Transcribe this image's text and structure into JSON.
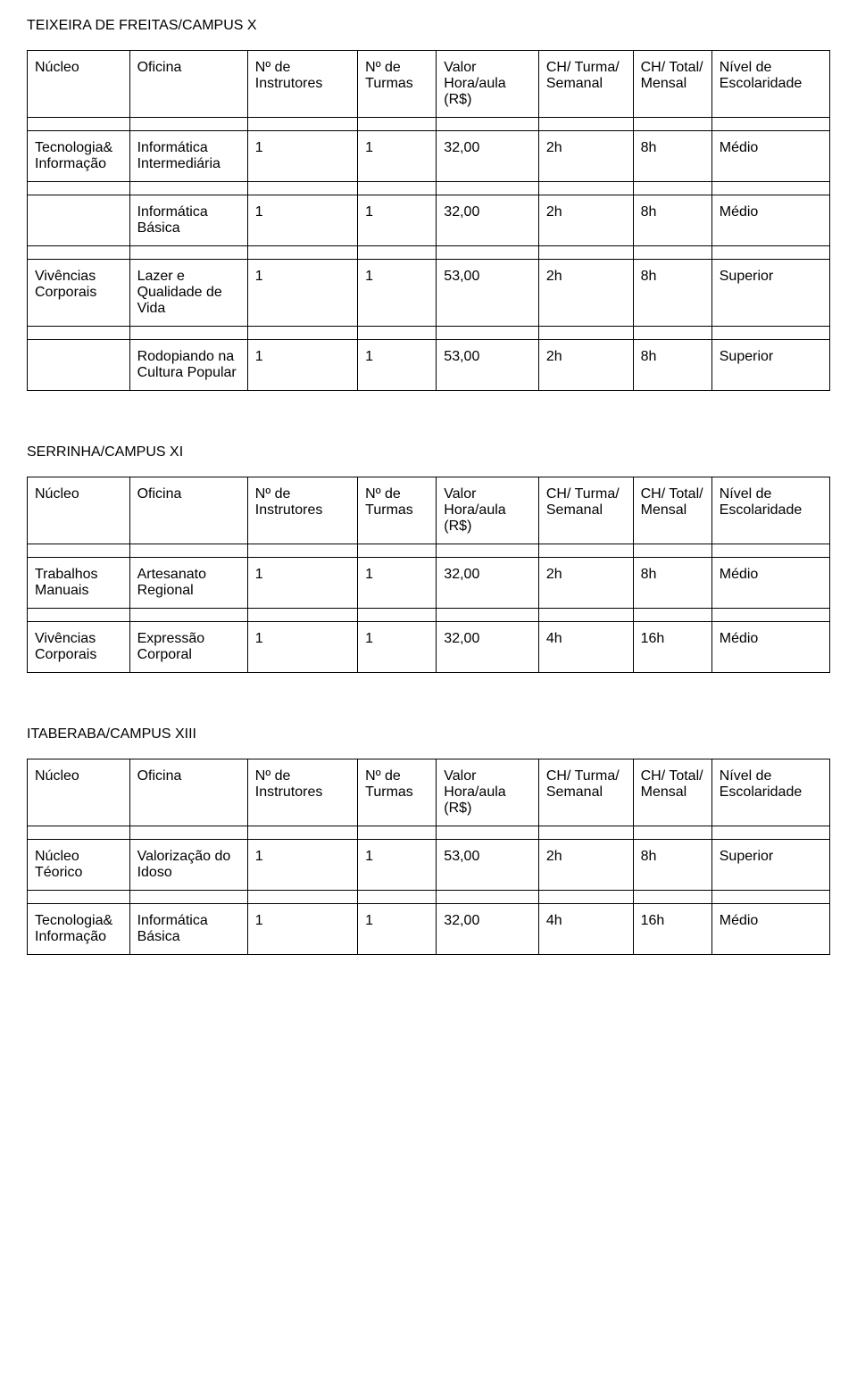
{
  "columns": [
    "Núcleo",
    "Oficina",
    "Nº de Instrutores",
    "Nº de Turmas",
    "Valor Hora/aula (R$)",
    "CH/ Turma/ Semanal",
    "CH/ Total/ Mensal",
    "Nível de Escolaridade"
  ],
  "sections": [
    {
      "title": "TEIXEIRA DE FREITAS/CAMPUS X",
      "rows": [
        [
          "Tecnologia& Informação",
          "Informática Intermediária",
          "1",
          "1",
          "32,00",
          "2h",
          "8h",
          "Médio"
        ],
        [
          "",
          "Informática Básica",
          "1",
          "1",
          "32,00",
          "2h",
          "8h",
          "Médio"
        ],
        [
          "Vivências Corporais",
          "Lazer e Qualidade de Vida",
          "1",
          "1",
          "53,00",
          "2h",
          "8h",
          "Superior"
        ],
        [
          "",
          "Rodopiando na Cultura Popular",
          "1",
          "1",
          "53,00",
          "2h",
          "8h",
          "Superior"
        ]
      ]
    },
    {
      "title": "SERRINHA/CAMPUS XI",
      "rows": [
        [
          "Trabalhos Manuais",
          "Artesanato Regional",
          "1",
          "1",
          "32,00",
          "2h",
          "8h",
          "Médio"
        ],
        [
          "Vivências Corporais",
          "Expressão Corporal",
          "1",
          "1",
          "32,00",
          "4h",
          "16h",
          "Médio"
        ]
      ]
    },
    {
      "title": "ITABERABA/CAMPUS XIII",
      "rows": [
        [
          "Núcleo Téorico",
          "Valorização do Idoso",
          "1",
          "1",
          "53,00",
          "2h",
          "8h",
          "Superior"
        ],
        [
          "Tecnologia& Informação",
          "Informática Básica",
          "1",
          "1",
          "32,00",
          "4h",
          "16h",
          "Médio"
        ]
      ]
    }
  ]
}
